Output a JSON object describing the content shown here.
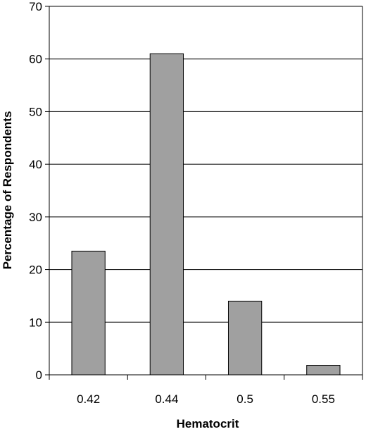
{
  "chart_data": {
    "type": "bar",
    "title": "",
    "xlabel": "Hematocrit",
    "ylabel": "Percentage of Respondents",
    "categories": [
      "0.42",
      "0.44",
      "0.5",
      "0.55"
    ],
    "values": [
      23.5,
      61,
      14,
      1.8
    ],
    "ylim": [
      0,
      70
    ],
    "yticks": [
      0,
      10,
      20,
      30,
      40,
      50,
      60,
      70
    ],
    "grid": true,
    "legend": "none",
    "colors": {
      "bar_fill": "#a0a0a0",
      "bar_stroke": "#000000",
      "grid": "#000000",
      "axis": "#000000"
    }
  }
}
